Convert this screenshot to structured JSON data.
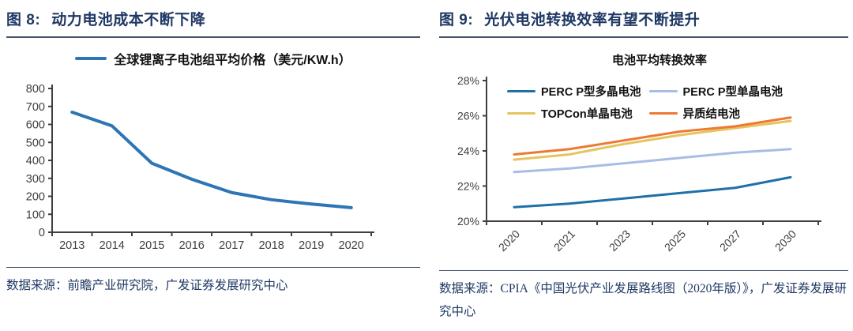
{
  "accent": {
    "navy": "#1F3864",
    "rule": "#44546A",
    "axis": "#3F3F3F",
    "text": "#111111"
  },
  "left_panel": {
    "figure_label": "图 8:",
    "figure_title": "动力电池成本不断下降",
    "source": "数据来源：前瞻产业研究院，广发证券发展研究中心"
  },
  "right_panel": {
    "figure_label": "图 9:",
    "figure_title": "光伏电池转换效率有望不断提升",
    "source": "数据来源：CPIA《中国光伏产业发展路线图（2020年版）》，广发证券发展研究中心"
  },
  "chart_data": [
    {
      "type": "line",
      "title": "",
      "xlabel": "",
      "ylabel": "",
      "legend_position": "top",
      "grid": false,
      "categories": [
        "2013",
        "2014",
        "2015",
        "2016",
        "2017",
        "2018",
        "2019",
        "2020"
      ],
      "series": [
        {
          "name": "全球锂离子电池组平均价格（美元/KW.h）",
          "color": "#2E75B6",
          "values": [
            668,
            592,
            384,
            295,
            221,
            181,
            157,
            137
          ]
        }
      ],
      "ylim": [
        0,
        800
      ],
      "yticks": [
        0,
        100,
        200,
        300,
        400,
        500,
        600,
        700,
        800
      ],
      "ytick_labels": [
        "0",
        "100",
        "200",
        "300",
        "400",
        "500",
        "600",
        "700",
        "800"
      ]
    },
    {
      "type": "line",
      "title": "电池平均转换效率",
      "xlabel": "",
      "ylabel": "",
      "legend_position": "top-inside",
      "grid": false,
      "x_label_rotation": -45,
      "categories": [
        "2020",
        "2021",
        "2023",
        "2025",
        "2027",
        "2030"
      ],
      "series": [
        {
          "name": "PERC P型多晶电池",
          "color": "#2070A8",
          "values": [
            20.8,
            21.0,
            21.3,
            21.6,
            21.9,
            22.5
          ]
        },
        {
          "name": "PERC P型单晶电池",
          "color": "#A8BCE6",
          "values": [
            22.8,
            23.0,
            23.3,
            23.6,
            23.9,
            24.1
          ]
        },
        {
          "name": "TOPCon单晶电池",
          "color": "#E5C45F",
          "values": [
            23.5,
            23.8,
            24.4,
            24.9,
            25.3,
            25.7
          ]
        },
        {
          "name": "异质结电池",
          "color": "#ED7A33",
          "values": [
            23.8,
            24.1,
            24.6,
            25.1,
            25.4,
            25.9
          ]
        }
      ],
      "ylim": [
        20,
        28
      ],
      "yticks": [
        20,
        22,
        24,
        26,
        28
      ],
      "ytick_labels": [
        "20%",
        "22%",
        "24%",
        "26%",
        "28%"
      ]
    }
  ]
}
